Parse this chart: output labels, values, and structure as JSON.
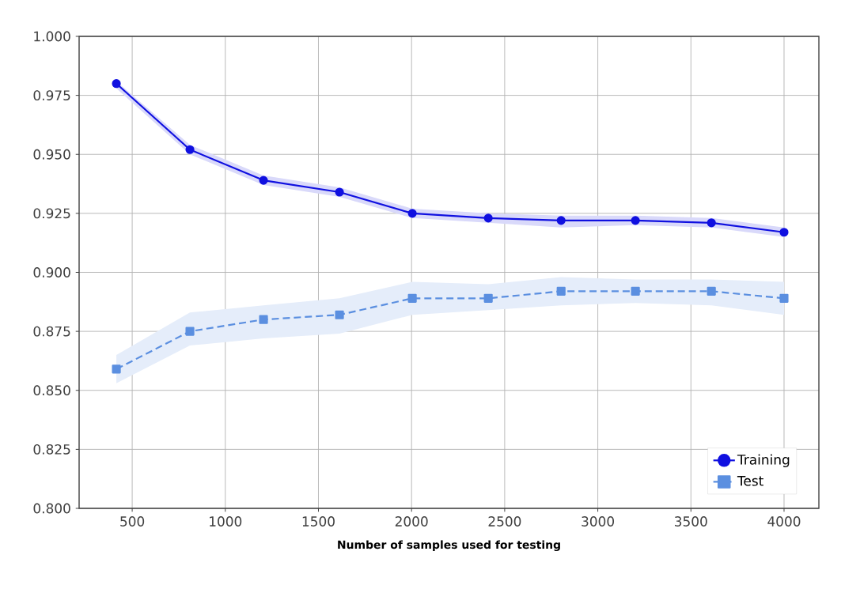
{
  "chart_data": {
    "type": "line",
    "xlabel": "Number of samples used for testing",
    "xlim": [
      215,
      4187
    ],
    "xticks": [
      500,
      1000,
      1500,
      2000,
      2500,
      3000,
      3500,
      4000
    ],
    "ylim": [
      0.8,
      1.0
    ],
    "yticks": [
      {
        "value": 0.8,
        "label": "0.800"
      },
      {
        "value": 0.825,
        "label": "0.825"
      },
      {
        "value": 0.85,
        "label": "0.850"
      },
      {
        "value": 0.875,
        "label": "0.875"
      },
      {
        "value": 0.9,
        "label": "0.900"
      },
      {
        "value": 0.925,
        "label": "0.925"
      },
      {
        "value": 0.95,
        "label": "0.950"
      },
      {
        "value": 0.975,
        "label": "0.975"
      },
      {
        "value": 1.0,
        "label": "1.000"
      }
    ],
    "grid": true,
    "legend": "bottom right",
    "series": [
      {
        "name": "Training",
        "color": "#1010e0",
        "marker": "circle",
        "line_style": "solid",
        "x": [
          415,
          810,
          1205,
          1613,
          2004,
          2412,
          2803,
          3202,
          3610,
          4000
        ],
        "values": [
          0.98,
          0.952,
          0.939,
          0.934,
          0.925,
          0.923,
          0.922,
          0.922,
          0.921,
          0.917
        ],
        "lower": [
          0.978,
          0.95,
          0.937,
          0.932,
          0.923,
          0.921,
          0.919,
          0.92,
          0.919,
          0.915
        ],
        "upper": [
          0.981,
          0.954,
          0.941,
          0.936,
          0.927,
          0.925,
          0.924,
          0.924,
          0.923,
          0.919
        ]
      },
      {
        "name": "Test",
        "color": "#5b8fe0",
        "marker": "square",
        "line_style": "dashed",
        "x": [
          415,
          810,
          1205,
          1613,
          2004,
          2412,
          2803,
          3202,
          3610,
          4000
        ],
        "values": [
          0.859,
          0.875,
          0.88,
          0.882,
          0.889,
          0.889,
          0.892,
          0.892,
          0.892,
          0.889
        ],
        "lower": [
          0.853,
          0.869,
          0.872,
          0.874,
          0.882,
          0.884,
          0.886,
          0.887,
          0.886,
          0.882
        ],
        "upper": [
          0.865,
          0.883,
          0.886,
          0.889,
          0.896,
          0.895,
          0.898,
          0.897,
          0.897,
          0.896
        ]
      }
    ]
  }
}
